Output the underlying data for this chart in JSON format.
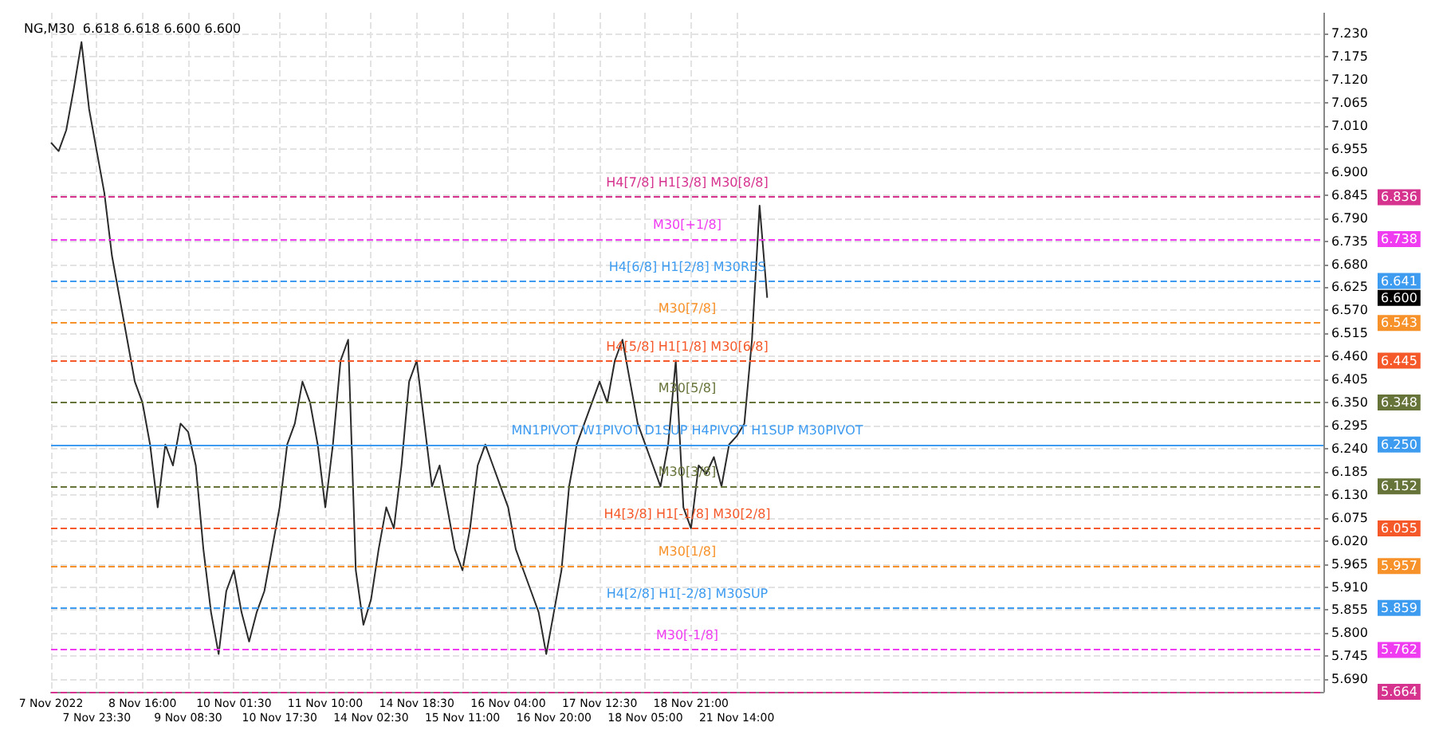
{
  "chart_data": {
    "type": "line",
    "title": "NG,M30  6.618 6.618 6.600 6.600",
    "categories": [
      "7 Nov 2022",
      null,
      null,
      null,
      null,
      null,
      "7 Nov 23:30",
      null,
      null,
      null,
      null,
      null,
      "8 Nov 16:00",
      null,
      null,
      null,
      null,
      null,
      "9 Nov 08:30",
      null,
      null,
      null,
      null,
      null,
      "10 Nov 01:30",
      null,
      null,
      null,
      null,
      null,
      "10 Nov 17:30",
      null,
      null,
      null,
      null,
      null,
      "11 Nov 10:00",
      null,
      null,
      null,
      null,
      null,
      "14 Nov 02:30",
      null,
      null,
      null,
      null,
      null,
      "14 Nov 18:30",
      null,
      null,
      null,
      null,
      null,
      "15 Nov 11:00",
      null,
      null,
      null,
      null,
      null,
      "16 Nov 04:00",
      null,
      null,
      null,
      null,
      null,
      "16 Nov 20:00",
      null,
      null,
      null,
      null,
      null,
      "17 Nov 12:30",
      null,
      null,
      null,
      null,
      null,
      "18 Nov 05:00",
      null,
      null,
      null,
      null,
      null,
      "18 Nov 21:00",
      null,
      null,
      null,
      null,
      null,
      "21 Nov 14:00",
      null,
      null,
      null,
      null,
      null,
      null,
      null,
      null,
      null,
      null,
      null,
      null,
      null,
      null,
      null,
      null,
      null,
      null,
      null,
      null,
      null,
      null,
      null,
      null,
      null,
      null,
      null,
      null,
      null,
      null,
      null,
      null,
      null,
      null,
      null,
      null,
      null,
      null,
      null,
      null,
      null,
      null,
      null,
      null,
      null,
      null,
      null,
      null,
      null,
      null,
      null,
      null,
      null,
      null,
      null,
      null,
      null,
      null,
      null,
      null,
      null,
      null,
      null,
      null,
      null,
      null,
      null,
      null,
      null,
      null,
      null,
      null,
      null,
      null,
      null,
      null,
      null
    ],
    "series": [
      {
        "color": "#2b2b2b",
        "values": [
          6.97,
          6.95,
          7.0,
          7.1,
          7.21,
          7.05,
          6.95,
          6.85,
          6.7,
          6.6,
          6.5,
          6.4,
          6.35,
          6.25,
          6.1,
          6.25,
          6.2,
          6.3,
          6.28,
          6.2,
          6.0,
          5.85,
          5.75,
          5.9,
          5.95,
          5.85,
          5.78,
          5.85,
          5.9,
          6.0,
          6.1,
          6.25,
          6.3,
          6.4,
          6.35,
          6.25,
          6.1,
          6.25,
          6.45,
          6.5,
          5.95,
          5.82,
          5.88,
          6.0,
          6.1,
          6.05,
          6.2,
          6.4,
          6.45,
          6.3,
          6.15,
          6.2,
          6.1,
          6.0,
          5.95,
          6.05,
          6.2,
          6.25,
          6.2,
          6.15,
          6.1,
          6.0,
          5.95,
          5.9,
          5.85,
          5.75,
          5.85,
          5.95,
          6.15,
          6.25,
          6.3,
          6.35,
          6.4,
          6.35,
          6.45,
          6.5,
          6.4,
          6.3,
          6.25,
          6.2,
          6.15,
          6.25,
          6.45,
          6.1,
          6.05,
          6.2,
          6.18,
          6.22,
          6.15,
          6.25,
          6.27,
          6.3,
          6.5,
          6.82,
          6.6,
          null,
          null,
          null,
          null,
          null,
          null,
          null,
          null,
          null,
          null,
          null,
          null,
          null,
          null,
          null,
          null,
          null,
          null,
          null,
          null,
          null,
          null,
          null,
          null,
          null,
          null,
          null,
          null,
          null,
          null,
          null,
          null,
          null,
          null,
          null,
          null,
          null,
          null,
          null,
          null,
          null,
          null,
          null,
          null,
          null,
          null,
          null,
          null,
          null,
          null,
          null,
          null,
          null,
          null,
          null,
          null,
          null,
          null,
          null,
          null,
          null,
          null,
          null,
          null,
          null,
          null,
          null,
          null,
          null,
          null,
          null,
          null,
          null
        ]
      }
    ],
    "ylim": [
      5.66,
      7.28
    ],
    "yticks": [
      {
        "value": 5.69,
        "label": "5.690"
      },
      {
        "value": 5.745,
        "label": "5.745"
      },
      {
        "value": 5.8,
        "label": "5.800"
      },
      {
        "value": 5.855,
        "label": "5.855"
      },
      {
        "value": 5.91,
        "label": "5.910"
      },
      {
        "value": 5.965,
        "label": "5.965"
      },
      {
        "value": 6.02,
        "label": "6.020"
      },
      {
        "value": 6.075,
        "label": "6.075"
      },
      {
        "value": 6.13,
        "label": "6.130"
      },
      {
        "value": 6.185,
        "label": "6.185"
      },
      {
        "value": 6.24,
        "label": "6.240"
      },
      {
        "value": 6.295,
        "label": "6.295"
      },
      {
        "value": 6.35,
        "label": "6.350"
      },
      {
        "value": 6.405,
        "label": "6.405"
      },
      {
        "value": 6.46,
        "label": "6.460"
      },
      {
        "value": 6.515,
        "label": "6.515"
      },
      {
        "value": 6.57,
        "label": "6.570"
      },
      {
        "value": 6.625,
        "label": "6.625"
      },
      {
        "value": 6.68,
        "label": "6.680"
      },
      {
        "value": 6.735,
        "label": "6.735"
      },
      {
        "value": 6.79,
        "label": "6.790"
      },
      {
        "value": 6.845,
        "label": "6.845"
      },
      {
        "value": 6.9,
        "label": "6.900"
      },
      {
        "value": 6.955,
        "label": "6.955"
      },
      {
        "value": 7.01,
        "label": "7.010"
      },
      {
        "value": 7.065,
        "label": "7.065"
      },
      {
        "value": 7.12,
        "label": "7.120"
      },
      {
        "value": 7.175,
        "label": "7.175"
      },
      {
        "value": 7.23,
        "label": "7.230"
      }
    ],
    "ref_lines": [
      {
        "axis": "y",
        "value": 6.836,
        "label": "H4[7/8] H1[3/8] M30[8/8]",
        "color": "#d6338f",
        "line_style": "dashed"
      },
      {
        "axis": "y",
        "value": 6.738,
        "label": "M30[+1/8]",
        "color": "#f03cf0",
        "line_style": "dashed"
      },
      {
        "axis": "y",
        "value": 6.641,
        "label": "H4[6/8] H1[2/8] M30RES",
        "color": "#3d9bf0",
        "line_style": "dashed"
      },
      {
        "axis": "y",
        "value": 6.543,
        "label": "M30[7/8]",
        "color": "#f7922a",
        "line_style": "dashed"
      },
      {
        "axis": "y",
        "value": 6.445,
        "label": "H4[5/8] H1[1/8] M30[6/8]",
        "color": "#f5592a",
        "line_style": "dashed"
      },
      {
        "axis": "y",
        "value": 6.348,
        "label": "M30[5/8]",
        "color": "#66743a",
        "line_style": "dashed"
      },
      {
        "axis": "y",
        "value": 6.25,
        "label": "MN1PIVOT W1PIVOT D1SUP H4PIVOT H1SUP M30PIVOT",
        "color": "#3d9bf0",
        "line_style": "solid"
      },
      {
        "axis": "y",
        "value": 6.152,
        "label": "M30[3/8]",
        "color": "#66743a",
        "line_style": "dashed"
      },
      {
        "axis": "y",
        "value": 6.055,
        "label": "H4[3/8] H1[-1/8] M30[2/8]",
        "color": "#f5592a",
        "line_style": "dashed"
      },
      {
        "axis": "y",
        "value": 5.957,
        "label": "M30[1/8]",
        "color": "#f7922a",
        "line_style": "dashed"
      },
      {
        "axis": "y",
        "value": 5.859,
        "label": "H4[2/8] H1[-2/8] M30SUP",
        "color": "#3d9bf0",
        "line_style": "dashed"
      },
      {
        "axis": "y",
        "value": 5.762,
        "label": "M30[-1/8]",
        "color": "#f03cf0",
        "line_style": "dashed"
      },
      {
        "axis": "y",
        "value": 5.664,
        "color": "#d6338f",
        "line_style": "dashed"
      }
    ],
    "annotations": [
      "6.836",
      "6.738",
      "6.641",
      "6.543",
      "6.445",
      "6.348",
      "6.250",
      "6.152",
      "6.055",
      "5.957",
      "5.859",
      "5.762",
      "5.664",
      "6.600"
    ],
    "grid": true
  }
}
